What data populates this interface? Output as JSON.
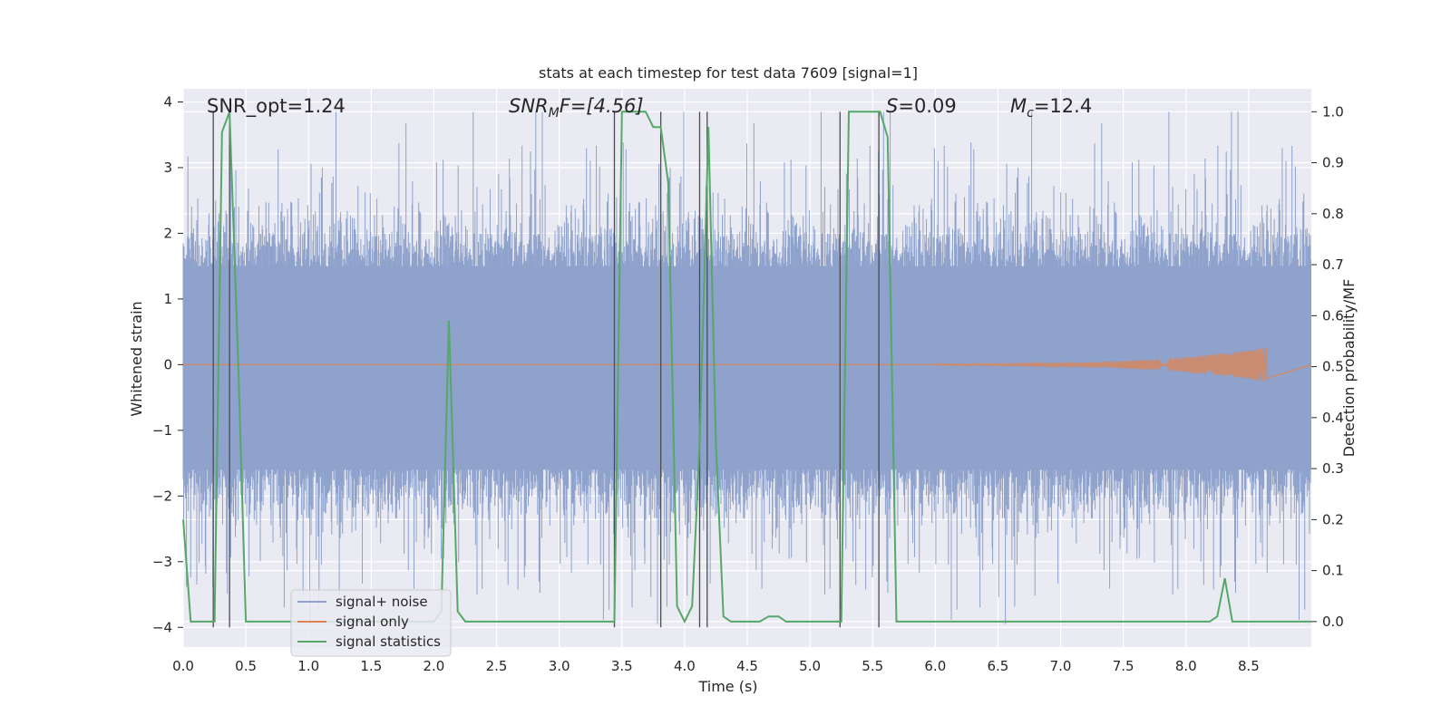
{
  "chart_data": {
    "type": "line",
    "title": "stats at each timestep for test data 7609 [signal=1]",
    "xlabel": "Time (s)",
    "ylabel_left": "Whitened strain",
    "ylabel_right": "Detection probability/MF",
    "xlim": [
      0.0,
      9.0
    ],
    "ylim_left": [
      -4.3,
      4.2
    ],
    "ylim_right": [
      -0.05,
      1.045
    ],
    "x_ticks": [
      0.0,
      0.5,
      1.0,
      1.5,
      2.0,
      2.5,
      3.0,
      3.5,
      4.0,
      4.5,
      5.0,
      5.5,
      6.0,
      6.5,
      7.0,
      7.5,
      8.0,
      8.5
    ],
    "x_tick_labels": [
      "0.0",
      "0.5",
      "1.0",
      "1.5",
      "2.0",
      "2.5",
      "3.0",
      "3.5",
      "4.0",
      "4.5",
      "5.0",
      "5.5",
      "6.0",
      "6.5",
      "7.0",
      "7.5",
      "8.0",
      "8.5"
    ],
    "y_left_ticks": [
      -4,
      -3,
      -2,
      -1,
      0,
      1,
      2,
      3,
      4
    ],
    "y_left_tick_labels": [
      "−4",
      "−3",
      "−2",
      "−1",
      "0",
      "1",
      "2",
      "3",
      "4"
    ],
    "y_right_ticks": [
      0.0,
      0.1,
      0.2,
      0.3,
      0.4,
      0.5,
      0.6,
      0.7,
      0.8,
      0.9,
      1.0
    ],
    "y_right_tick_labels": [
      "0.0",
      "0.1",
      "0.2",
      "0.3",
      "0.4",
      "0.5",
      "0.6",
      "0.7",
      "0.8",
      "0.9",
      "1.0"
    ],
    "annotations": {
      "snr_opt": "SNR_opt=1.24",
      "snr_mf_base": "SNR",
      "snr_mf_sub": "M",
      "snr_mf_rest": "F=[4.56]",
      "s_italic": "S",
      "s_rest": "=0.09",
      "mc_base": "M",
      "mc_sub": "c",
      "mc_rest": "=12.4"
    },
    "legend": [
      "signal+ noise",
      "signal only",
      "signal statistics"
    ],
    "colors": {
      "noise": "#8ea2cc",
      "signal": "#dd8452",
      "stat": "#55a868",
      "vline": "#4c4c4c",
      "plot_bg": "#eaeaf2",
      "grid": "#ffffff"
    },
    "noise_series": {
      "name": "signal+ noise",
      "description": "whitened strain, dense noise roughly within ±2.5 with spikes",
      "amplitude_sigma": 1.0,
      "duration": 9.0
    },
    "signal_series": {
      "name": "signal only",
      "description": "near-zero chirp growing toward merger",
      "t_start": 6.0,
      "t_merger": 8.65,
      "peak_amplitude": 0.25
    },
    "statistic_series": {
      "name": "signal statistics",
      "x": [
        0.0,
        0.06,
        0.25,
        0.31,
        0.37,
        0.44,
        0.5,
        2.0,
        2.06,
        2.12,
        2.19,
        2.25,
        2.31,
        3.0,
        3.44,
        3.5,
        3.56,
        3.69,
        3.75,
        3.81,
        3.87,
        3.94,
        4.0,
        4.06,
        4.12,
        4.19,
        4.25,
        4.31,
        4.37,
        4.5,
        4.6,
        4.67,
        4.75,
        4.81,
        5.0,
        5.25,
        5.31,
        5.56,
        5.62,
        5.69,
        8.19,
        8.25,
        8.31,
        8.37,
        9.0
      ],
      "y": [
        0.2,
        0.0,
        0.0,
        0.96,
        1.0,
        0.5,
        0.0,
        0.0,
        0.02,
        0.59,
        0.02,
        0.0,
        0.0,
        0.0,
        0.0,
        1.0,
        1.0,
        1.0,
        0.97,
        0.97,
        0.86,
        0.03,
        0.0,
        0.03,
        0.35,
        0.97,
        0.35,
        0.01,
        0.0,
        0.0,
        0.0,
        0.01,
        0.01,
        0.0,
        0.0,
        0.0,
        1.0,
        1.0,
        0.95,
        0.0,
        0.0,
        0.01,
        0.085,
        0.0,
        0.0
      ]
    },
    "vertical_lines": {
      "x": [
        0.24,
        0.37,
        3.44,
        3.81,
        4.12,
        4.18,
        5.24,
        5.55
      ],
      "y_bottom": -4.0,
      "y_top": 3.85
    }
  }
}
